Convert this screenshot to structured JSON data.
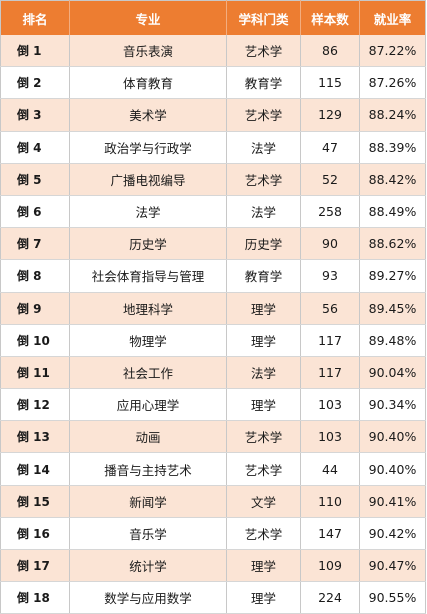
{
  "headers": [
    "排名",
    "专业",
    "学科门类",
    "样本数",
    "就业率"
  ],
  "rows": [
    [
      "倒 1",
      "音乐表演",
      "艺术学",
      "86",
      "87.22%"
    ],
    [
      "倒 2",
      "体育教育",
      "教育学",
      "115",
      "87.26%"
    ],
    [
      "倒 3",
      "美术学",
      "艺术学",
      "129",
      "88.24%"
    ],
    [
      "倒 4",
      "政治学与行政学",
      "法学",
      "47",
      "88.39%"
    ],
    [
      "倒 5",
      "广播电视编导",
      "艺术学",
      "52",
      "88.42%"
    ],
    [
      "倒 6",
      "法学",
      "法学",
      "258",
      "88.49%"
    ],
    [
      "倒 7",
      "历史学",
      "历史学",
      "90",
      "88.62%"
    ],
    [
      "倒 8",
      "社会体育指导与管理",
      "教育学",
      "93",
      "89.27%"
    ],
    [
      "倒 9",
      "地理科学",
      "理学",
      "56",
      "89.45%"
    ],
    [
      "倒 10",
      "物理学",
      "理学",
      "117",
      "89.48%"
    ],
    [
      "倒 11",
      "社会工作",
      "法学",
      "117",
      "90.04%"
    ],
    [
      "倒 12",
      "应用心理学",
      "理学",
      "103",
      "90.34%"
    ],
    [
      "倒 13",
      "动画",
      "艺术学",
      "103",
      "90.40%"
    ],
    [
      "倒 14",
      "播音与主持艺术",
      "艺术学",
      "44",
      "90.40%"
    ],
    [
      "倒 15",
      "新闻学",
      "文学",
      "110",
      "90.41%"
    ],
    [
      "倒 16",
      "音乐学",
      "艺术学",
      "147",
      "90.42%"
    ],
    [
      "倒 17",
      "统计学",
      "理学",
      "109",
      "90.47%"
    ],
    [
      "倒 18",
      "数学与应用数学",
      "理学",
      "224",
      "90.55%"
    ]
  ],
  "colors": {
    "header_bg": "#ed7d31",
    "header_text": "#ffffff",
    "shaded_row": "#fbe4d5",
    "plain_row": "#ffffff"
  }
}
